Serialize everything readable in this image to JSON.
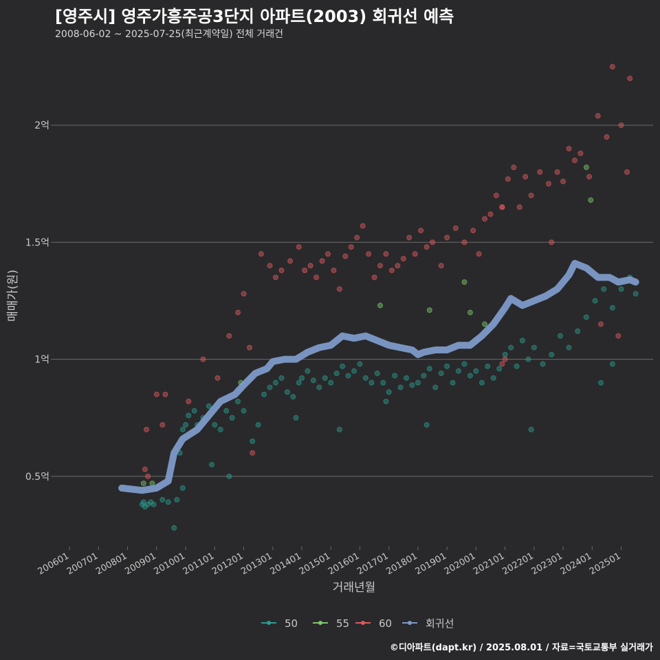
{
  "header": {
    "title": "[영주시] 영주가흥주공3단지 아파트(2003) 회귀선 예측",
    "subtitle": "2008-06-02 ~ 2025-07-25(최근계약일) 전체 거래건"
  },
  "footer": {
    "credit": "©디아파트(dapt.kr) / 2025.08.01 / 자료=국토교통부 실거래가"
  },
  "colors": {
    "s50": "#2a9d8f",
    "s55": "#7dc96b",
    "s60": "#e05a5f",
    "reg": "#7d9ac9",
    "grid": "#6b6b6b",
    "bg": "#29292b"
  },
  "chart_data": {
    "type": "scatter",
    "xlabel": "거래년월",
    "ylabel": "매매가(원)",
    "x_ticks": [
      "200601",
      "200701",
      "200801",
      "200901",
      "201001",
      "201101",
      "201201",
      "201301",
      "201401",
      "201501",
      "201601",
      "201701",
      "201801",
      "201901",
      "202001",
      "202101",
      "202201",
      "202301",
      "202401",
      "202501"
    ],
    "y_ticks": [
      {
        "value": 0.5,
        "label": "0.5억"
      },
      {
        "value": 1.0,
        "label": "1억"
      },
      {
        "value": 1.5,
        "label": "1.5억"
      },
      {
        "value": 2.0,
        "label": "2억"
      }
    ],
    "xlim": [
      2005.5,
      2026.1
    ],
    "ylim": [
      0.2,
      2.3
    ],
    "y_unit": "억",
    "grid": true,
    "legend_position": "bottom",
    "legend": [
      "50",
      "55",
      "60",
      "회귀선"
    ],
    "series": [
      {
        "name": "50",
        "points": [
          [
            2008.5,
            0.38
          ],
          [
            2008.55,
            0.39
          ],
          [
            2008.6,
            0.37
          ],
          [
            2008.7,
            0.38
          ],
          [
            2008.8,
            0.39
          ],
          [
            2008.9,
            0.38
          ],
          [
            2009.2,
            0.4
          ],
          [
            2009.4,
            0.39
          ],
          [
            2009.6,
            0.28
          ],
          [
            2009.7,
            0.4
          ],
          [
            2009.9,
            0.45
          ],
          [
            2009.8,
            0.6
          ],
          [
            2009.9,
            0.7
          ],
          [
            2010.0,
            0.72
          ],
          [
            2010.1,
            0.76
          ],
          [
            2010.3,
            0.78
          ],
          [
            2010.4,
            0.72
          ],
          [
            2010.6,
            0.75
          ],
          [
            2010.8,
            0.8
          ],
          [
            2010.9,
            0.55
          ],
          [
            2011.0,
            0.72
          ],
          [
            2011.2,
            0.7
          ],
          [
            2011.4,
            0.78
          ],
          [
            2011.5,
            0.5
          ],
          [
            2011.6,
            0.75
          ],
          [
            2011.8,
            0.82
          ],
          [
            2012.0,
            0.78
          ],
          [
            2012.3,
            0.65
          ],
          [
            2012.5,
            0.72
          ],
          [
            2012.7,
            0.85
          ],
          [
            2012.9,
            0.88
          ],
          [
            2013.1,
            0.9
          ],
          [
            2013.3,
            0.92
          ],
          [
            2013.5,
            0.86
          ],
          [
            2013.7,
            0.84
          ],
          [
            2013.9,
            0.9
          ],
          [
            2014.0,
            0.92
          ],
          [
            2014.2,
            0.95
          ],
          [
            2014.4,
            0.91
          ],
          [
            2014.6,
            0.88
          ],
          [
            2014.8,
            0.92
          ],
          [
            2015.0,
            0.9
          ],
          [
            2015.2,
            0.94
          ],
          [
            2015.4,
            0.97
          ],
          [
            2015.6,
            0.93
          ],
          [
            2015.8,
            0.95
          ],
          [
            2016.0,
            0.98
          ],
          [
            2016.2,
            0.92
          ],
          [
            2016.4,
            0.9
          ],
          [
            2016.6,
            0.94
          ],
          [
            2016.8,
            0.9
          ],
          [
            2016.9,
            0.82
          ],
          [
            2017.0,
            0.86
          ],
          [
            2017.2,
            0.93
          ],
          [
            2017.4,
            0.88
          ],
          [
            2017.6,
            0.92
          ],
          [
            2017.8,
            0.89
          ],
          [
            2018.0,
            0.9
          ],
          [
            2018.2,
            0.93
          ],
          [
            2018.4,
            0.96
          ],
          [
            2018.6,
            0.88
          ],
          [
            2018.8,
            0.94
          ],
          [
            2019.0,
            0.97
          ],
          [
            2019.2,
            0.9
          ],
          [
            2019.4,
            0.95
          ],
          [
            2019.6,
            0.98
          ],
          [
            2019.8,
            0.93
          ],
          [
            2020.0,
            0.95
          ],
          [
            2020.2,
            0.9
          ],
          [
            2020.4,
            0.97
          ],
          [
            2020.6,
            0.92
          ],
          [
            2020.8,
            0.96
          ],
          [
            2021.0,
            1.02
          ],
          [
            2021.2,
            1.05
          ],
          [
            2021.4,
            0.97
          ],
          [
            2021.6,
            1.08
          ],
          [
            2021.8,
            1.0
          ],
          [
            2022.0,
            1.05
          ],
          [
            2022.3,
            0.98
          ],
          [
            2022.6,
            1.02
          ],
          [
            2022.9,
            1.1
          ],
          [
            2023.2,
            1.05
          ],
          [
            2023.5,
            1.12
          ],
          [
            2023.8,
            1.18
          ],
          [
            2024.1,
            1.25
          ],
          [
            2024.4,
            1.3
          ],
          [
            2024.7,
            1.22
          ],
          [
            2025.0,
            1.3
          ],
          [
            2025.3,
            1.35
          ],
          [
            2025.5,
            1.28
          ],
          [
            2013.8,
            0.75
          ],
          [
            2015.3,
            0.7
          ],
          [
            2018.3,
            0.72
          ],
          [
            2021.9,
            0.7
          ],
          [
            2024.3,
            0.9
          ],
          [
            2024.7,
            0.98
          ]
        ]
      },
      {
        "name": "55",
        "points": [
          [
            2008.55,
            0.47
          ],
          [
            2008.85,
            0.47
          ],
          [
            2011.9,
            0.9
          ],
          [
            2016.7,
            1.23
          ],
          [
            2018.4,
            1.21
          ],
          [
            2019.6,
            1.33
          ],
          [
            2019.8,
            1.2
          ],
          [
            2023.8,
            1.82
          ],
          [
            2023.95,
            1.68
          ],
          [
            2020.3,
            1.15
          ]
        ]
      },
      {
        "name": "60",
        "points": [
          [
            2008.6,
            0.53
          ],
          [
            2008.7,
            0.5
          ],
          [
            2008.65,
            0.7
          ],
          [
            2009.0,
            0.85
          ],
          [
            2009.2,
            0.72
          ],
          [
            2009.3,
            0.85
          ],
          [
            2010.1,
            0.82
          ],
          [
            2010.6,
            1.0
          ],
          [
            2011.1,
            0.92
          ],
          [
            2011.5,
            1.1
          ],
          [
            2011.8,
            1.2
          ],
          [
            2012.0,
            1.28
          ],
          [
            2012.3,
            0.6
          ],
          [
            2012.2,
            1.05
          ],
          [
            2012.6,
            1.45
          ],
          [
            2012.9,
            1.4
          ],
          [
            2013.1,
            1.35
          ],
          [
            2013.3,
            1.38
          ],
          [
            2013.6,
            1.42
          ],
          [
            2013.9,
            1.48
          ],
          [
            2014.1,
            1.38
          ],
          [
            2014.3,
            1.4
          ],
          [
            2014.5,
            1.35
          ],
          [
            2014.7,
            1.42
          ],
          [
            2014.9,
            1.45
          ],
          [
            2015.1,
            1.38
          ],
          [
            2015.3,
            1.3
          ],
          [
            2015.5,
            1.44
          ],
          [
            2015.7,
            1.48
          ],
          [
            2015.9,
            1.52
          ],
          [
            2016.1,
            1.57
          ],
          [
            2016.3,
            1.45
          ],
          [
            2016.5,
            1.35
          ],
          [
            2016.7,
            1.4
          ],
          [
            2016.9,
            1.45
          ],
          [
            2017.1,
            1.38
          ],
          [
            2017.3,
            1.4
          ],
          [
            2017.5,
            1.43
          ],
          [
            2017.7,
            1.52
          ],
          [
            2017.9,
            1.45
          ],
          [
            2018.1,
            1.55
          ],
          [
            2018.3,
            1.48
          ],
          [
            2018.5,
            1.5
          ],
          [
            2018.8,
            1.4
          ],
          [
            2019.0,
            1.52
          ],
          [
            2019.3,
            1.56
          ],
          [
            2019.6,
            1.5
          ],
          [
            2019.9,
            1.55
          ],
          [
            2020.1,
            1.45
          ],
          [
            2020.3,
            1.6
          ],
          [
            2020.5,
            1.62
          ],
          [
            2020.7,
            1.7
          ],
          [
            2020.9,
            1.65
          ],
          [
            2021.1,
            1.77
          ],
          [
            2021.3,
            1.82
          ],
          [
            2021.5,
            1.65
          ],
          [
            2021.7,
            1.78
          ],
          [
            2021.9,
            1.7
          ],
          [
            2022.2,
            1.8
          ],
          [
            2022.5,
            1.75
          ],
          [
            2022.8,
            1.8
          ],
          [
            2023.0,
            1.76
          ],
          [
            2023.2,
            1.9
          ],
          [
            2023.4,
            1.85
          ],
          [
            2023.6,
            1.88
          ],
          [
            2023.9,
            1.78
          ],
          [
            2024.2,
            2.04
          ],
          [
            2024.5,
            1.95
          ],
          [
            2024.7,
            2.25
          ],
          [
            2025.0,
            2.0
          ],
          [
            2025.2,
            1.8
          ],
          [
            2025.3,
            2.2
          ],
          [
            2022.6,
            1.5
          ],
          [
            2020.9,
            0.98
          ],
          [
            2021.0,
            1.0
          ],
          [
            2020.9,
            1.65
          ],
          [
            2024.3,
            1.15
          ],
          [
            2024.9,
            1.1
          ]
        ]
      }
    ],
    "regression": [
      [
        2007.8,
        0.45
      ],
      [
        2008.5,
        0.44
      ],
      [
        2009.0,
        0.45
      ],
      [
        2009.4,
        0.48
      ],
      [
        2009.6,
        0.6
      ],
      [
        2009.9,
        0.66
      ],
      [
        2010.4,
        0.7
      ],
      [
        2010.8,
        0.76
      ],
      [
        2011.2,
        0.82
      ],
      [
        2011.7,
        0.85
      ],
      [
        2012.0,
        0.89
      ],
      [
        2012.4,
        0.94
      ],
      [
        2012.8,
        0.96
      ],
      [
        2013.0,
        0.99
      ],
      [
        2013.4,
        1.0
      ],
      [
        2013.8,
        1.0
      ],
      [
        2014.2,
        1.03
      ],
      [
        2014.6,
        1.05
      ],
      [
        2015.0,
        1.06
      ],
      [
        2015.4,
        1.1
      ],
      [
        2015.8,
        1.09
      ],
      [
        2016.2,
        1.1
      ],
      [
        2016.6,
        1.08
      ],
      [
        2017.0,
        1.06
      ],
      [
        2017.4,
        1.05
      ],
      [
        2017.8,
        1.04
      ],
      [
        2018.0,
        1.02
      ],
      [
        2018.2,
        1.03
      ],
      [
        2018.6,
        1.04
      ],
      [
        2019.0,
        1.04
      ],
      [
        2019.4,
        1.06
      ],
      [
        2019.8,
        1.06
      ],
      [
        2020.2,
        1.1
      ],
      [
        2020.6,
        1.15
      ],
      [
        2021.0,
        1.22
      ],
      [
        2021.2,
        1.26
      ],
      [
        2021.6,
        1.23
      ],
      [
        2022.0,
        1.25
      ],
      [
        2022.4,
        1.27
      ],
      [
        2022.8,
        1.3
      ],
      [
        2023.2,
        1.36
      ],
      [
        2023.4,
        1.41
      ],
      [
        2023.8,
        1.39
      ],
      [
        2024.2,
        1.35
      ],
      [
        2024.6,
        1.35
      ],
      [
        2024.9,
        1.33
      ],
      [
        2025.3,
        1.34
      ],
      [
        2025.5,
        1.33
      ]
    ]
  }
}
